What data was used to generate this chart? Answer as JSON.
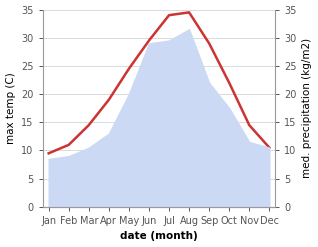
{
  "months": [
    "Jan",
    "Feb",
    "Mar",
    "Apr",
    "May",
    "Jun",
    "Jul",
    "Aug",
    "Sep",
    "Oct",
    "Nov",
    "Dec"
  ],
  "temp": [
    9.5,
    11.0,
    14.5,
    19.0,
    24.5,
    29.5,
    34.0,
    34.5,
    29.0,
    22.0,
    14.5,
    10.5
  ],
  "precip": [
    8.5,
    9.0,
    10.5,
    13.0,
    20.0,
    29.0,
    29.5,
    31.5,
    22.0,
    17.5,
    11.5,
    10.5
  ],
  "temp_color": "#cc3333",
  "precip_fill_color": "#ccd9f5",
  "precip_line_color": "#ccd9f5",
  "background_color": "#ffffff",
  "ylabel_left": "max temp (C)",
  "ylabel_right": "med. precipitation (kg/m2)",
  "xlabel": "date (month)",
  "ylim_left": [
    0,
    35
  ],
  "ylim_right": [
    0,
    35
  ],
  "label_fontsize": 7.5,
  "tick_fontsize": 7,
  "line_width": 1.8
}
